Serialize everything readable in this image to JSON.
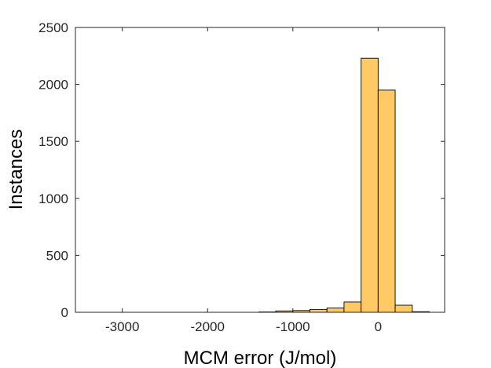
{
  "chart_data": {
    "type": "bar",
    "subtype": "histogram",
    "title": "",
    "xlabel": "MCM error (J/mol)",
    "ylabel": "Instances",
    "xlim": [
      -3550,
      780
    ],
    "ylim": [
      0,
      2500
    ],
    "xticks": [
      -3000,
      -2000,
      -1000,
      0
    ],
    "xtick_labels": [
      "-3000",
      "-2000",
      "-1000",
      "0"
    ],
    "yticks": [
      0,
      500,
      1000,
      1500,
      2000,
      2500
    ],
    "ytick_labels": [
      "0",
      "500",
      "1000",
      "1500",
      "2000",
      "2500"
    ],
    "bin_width": 200,
    "bins": [
      {
        "start": -1400,
        "end": -1200,
        "value": 3
      },
      {
        "start": -1200,
        "end": -1000,
        "value": 12
      },
      {
        "start": -1000,
        "end": -800,
        "value": 15
      },
      {
        "start": -800,
        "end": -600,
        "value": 25
      },
      {
        "start": -600,
        "end": -400,
        "value": 38
      },
      {
        "start": -400,
        "end": -200,
        "value": 90
      },
      {
        "start": -200,
        "end": 0,
        "value": 2230
      },
      {
        "start": 0,
        "end": 200,
        "value": 1950
      },
      {
        "start": 200,
        "end": 400,
        "value": 62
      },
      {
        "start": 400,
        "end": 600,
        "value": 5
      }
    ],
    "bar_color": "#FFC966",
    "bar_edge_color": "#000000",
    "grid": false,
    "box": true
  }
}
